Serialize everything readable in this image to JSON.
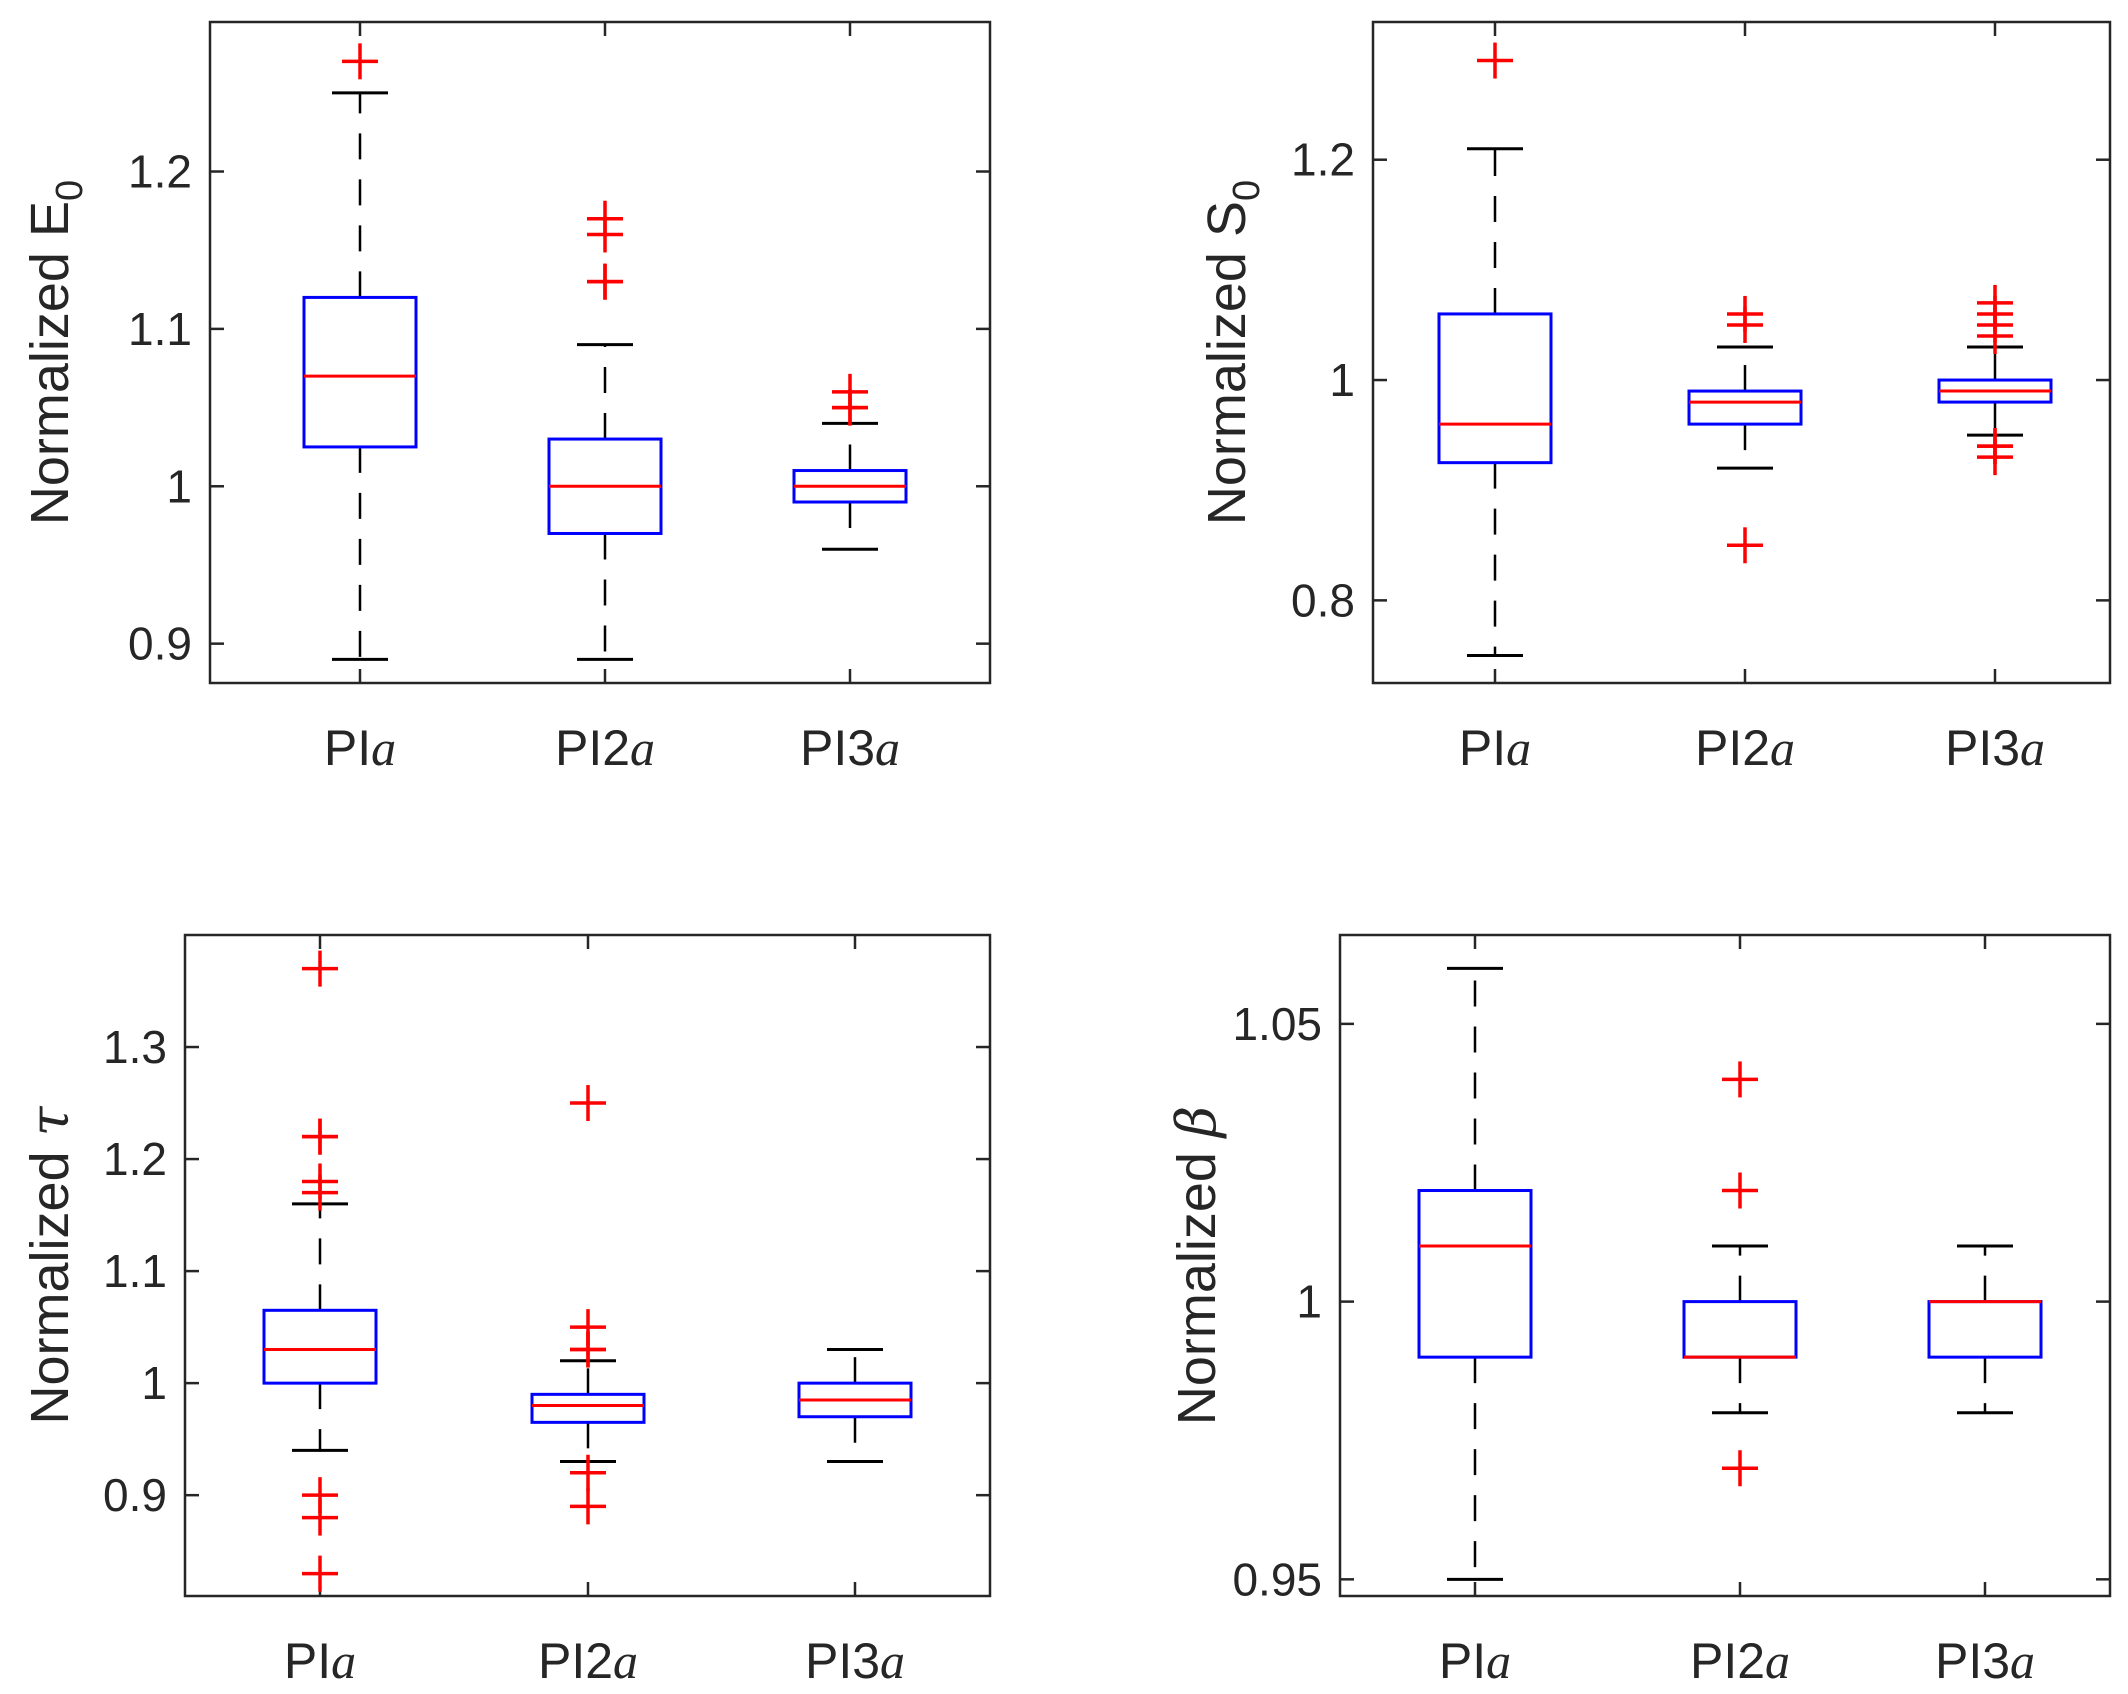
{
  "chart_data": [
    {
      "type": "box",
      "ylabel_text": "Normalized E",
      "ylabel_sub": "0",
      "ylim": [
        0.875,
        1.295
      ],
      "yticks": [
        0.9,
        1,
        1.1,
        1.2
      ],
      "ytick_labels": [
        "0.9",
        "1",
        "1.1",
        "1.2"
      ],
      "category_labels": [
        {
          "base": "PI",
          "it": "a"
        },
        {
          "base": "PI2",
          "it": "a"
        },
        {
          "base": "PI3",
          "it": "a"
        }
      ],
      "boxes": [
        {
          "q1": 1.025,
          "median": 1.07,
          "q3": 1.12,
          "whisker_low": 0.89,
          "whisker_high": 1.25,
          "outliers": [
            1.27
          ]
        },
        {
          "q1": 0.97,
          "median": 1.0,
          "q3": 1.03,
          "whisker_low": 0.89,
          "whisker_high": 1.09,
          "outliers": [
            1.13,
            1.13,
            1.16,
            1.17
          ]
        },
        {
          "q1": 0.99,
          "median": 1.0,
          "q3": 1.01,
          "whisker_low": 0.96,
          "whisker_high": 1.04,
          "outliers": [
            1.05,
            1.05,
            1.06
          ]
        }
      ]
    },
    {
      "type": "box",
      "ylabel_text": "Normalized S",
      "ylabel_sub": "0",
      "ylim": [
        0.725,
        1.325
      ],
      "yticks": [
        0.8,
        1,
        1.2
      ],
      "ytick_labels": [
        "0.8",
        "1",
        "1.2"
      ],
      "category_labels": [
        {
          "base": "PI",
          "it": "a"
        },
        {
          "base": "PI2",
          "it": "a"
        },
        {
          "base": "PI3",
          "it": "a"
        }
      ],
      "boxes": [
        {
          "q1": 0.925,
          "median": 0.96,
          "q3": 1.06,
          "whisker_low": 0.75,
          "whisker_high": 1.21,
          "outliers": [
            1.29
          ]
        },
        {
          "q1": 0.96,
          "median": 0.98,
          "q3": 0.99,
          "whisker_low": 0.92,
          "whisker_high": 1.03,
          "outliers": [
            0.85,
            1.05,
            1.06
          ]
        },
        {
          "q1": 0.98,
          "median": 0.99,
          "q3": 1.0,
          "whisker_low": 0.95,
          "whisker_high": 1.03,
          "outliers": [
            0.93,
            0.94,
            0.94,
            1.04,
            1.05,
            1.06,
            1.07
          ]
        }
      ]
    },
    {
      "type": "box",
      "ylabel_text": "Normalized ",
      "ylabel_greek": "τ",
      "ylim": [
        0.81,
        1.4
      ],
      "yticks": [
        0.9,
        1,
        1.1,
        1.2,
        1.3
      ],
      "ytick_labels": [
        "0.9",
        "1",
        "1.1",
        "1.2",
        "1.3"
      ],
      "category_labels": [
        {
          "base": "PI",
          "it": "a"
        },
        {
          "base": "PI2",
          "it": "a"
        },
        {
          "base": "PI3",
          "it": "a"
        }
      ],
      "boxes": [
        {
          "q1": 1.0,
          "median": 1.03,
          "q3": 1.065,
          "whisker_low": 0.94,
          "whisker_high": 1.16,
          "outliers": [
            0.83,
            0.88,
            0.9,
            1.17,
            1.18,
            1.22,
            1.22,
            1.37
          ]
        },
        {
          "q1": 0.965,
          "median": 0.98,
          "q3": 0.99,
          "whisker_low": 0.93,
          "whisker_high": 1.02,
          "outliers": [
            0.89,
            0.92,
            1.03,
            1.03,
            1.05,
            1.25
          ]
        },
        {
          "q1": 0.97,
          "median": 0.985,
          "q3": 1.0,
          "whisker_low": 0.93,
          "whisker_high": 1.03,
          "outliers": []
        }
      ]
    },
    {
      "type": "box",
      "ylabel_text": "Normalized ",
      "ylabel_greek": "β",
      "ylim": [
        0.947,
        1.066
      ],
      "yticks": [
        0.95,
        1,
        1.05
      ],
      "ytick_labels": [
        "0.95",
        "1",
        "1.05"
      ],
      "category_labels": [
        {
          "base": "PI",
          "it": "a"
        },
        {
          "base": "PI2",
          "it": "a"
        },
        {
          "base": "PI3",
          "it": "a"
        }
      ],
      "boxes": [
        {
          "q1": 0.99,
          "median": 1.01,
          "q3": 1.02,
          "whisker_low": 0.95,
          "whisker_high": 1.06,
          "outliers": []
        },
        {
          "q1": 0.99,
          "median": 0.99,
          "q3": 1.0,
          "whisker_low": 0.98,
          "whisker_high": 1.01,
          "outliers": [
            0.97,
            1.02,
            1.04
          ]
        },
        {
          "q1": 0.99,
          "median": 1.0,
          "q3": 1.0,
          "whisker_low": 0.98,
          "whisker_high": 1.01,
          "outliers": []
        }
      ]
    }
  ],
  "colors": {
    "box": "#0000ff",
    "median": "#ff0000",
    "whisker": "#000000",
    "outlier": "#ff0000",
    "axes": "#262626"
  }
}
